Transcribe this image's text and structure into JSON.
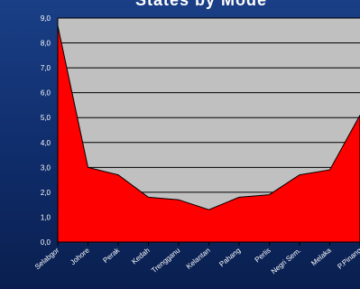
{
  "title": "States by Mode",
  "chart_data": {
    "type": "area",
    "title": "States by Mode",
    "categories": [
      "Selabgor",
      "Johore",
      "Perak",
      "Kedah",
      "Trengganu",
      "Kelantan",
      "Pahang",
      "Perlis",
      "Negri Sem.",
      "Melaka",
      "P.Pinang"
    ],
    "series": [
      {
        "values": [
          8.7,
          3.0,
          2.7,
          1.8,
          1.7,
          1.3,
          1.8,
          1.9,
          2.7,
          2.9,
          5.1
        ]
      }
    ],
    "ylim": [
      0,
      9
    ],
    "yticks": [
      "0,0",
      "1,0",
      "2,0",
      "3,0",
      "4,0",
      "5,0",
      "6,0",
      "7,0",
      "8,0",
      "9,0"
    ],
    "grid": true,
    "colors": {
      "fill": "#ff0000",
      "plot_background": "#c0c0c0",
      "page_background": "#14347a",
      "gridline": "#000000"
    }
  }
}
